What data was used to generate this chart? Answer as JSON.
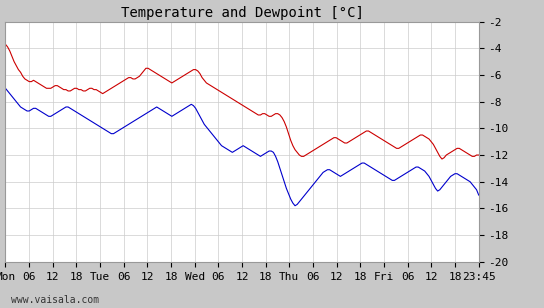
{
  "title": "Temperature and Dewpoint [°C]",
  "ylim": [
    -20,
    -2
  ],
  "yticks": [
    -20,
    -18,
    -16,
    -14,
    -12,
    -10,
    -8,
    -6,
    -4,
    -2
  ],
  "plot_bg_color": "#ffffff",
  "fig_bg_color": "#c8c8c8",
  "grid_color": "#cccccc",
  "temp_color": "#cc0000",
  "dew_color": "#0000cc",
  "watermark": "www.vaisala.com",
  "title_fontsize": 10,
  "tick_fontsize": 8,
  "watermark_fontsize": 7,
  "line_width": 0.8,
  "temp_data": [
    -3.7,
    -3.9,
    -4.2,
    -4.6,
    -5.0,
    -5.3,
    -5.6,
    -5.8,
    -6.1,
    -6.3,
    -6.4,
    -6.5,
    -6.5,
    -6.4,
    -6.5,
    -6.6,
    -6.7,
    -6.8,
    -6.9,
    -7.0,
    -7.0,
    -7.0,
    -6.9,
    -6.8,
    -6.8,
    -6.9,
    -7.0,
    -7.1,
    -7.1,
    -7.2,
    -7.2,
    -7.1,
    -7.0,
    -7.0,
    -7.1,
    -7.1,
    -7.2,
    -7.2,
    -7.1,
    -7.0,
    -7.0,
    -7.1,
    -7.1,
    -7.2,
    -7.3,
    -7.4,
    -7.3,
    -7.2,
    -7.1,
    -7.0,
    -6.9,
    -6.8,
    -6.7,
    -6.6,
    -6.5,
    -6.4,
    -6.3,
    -6.2,
    -6.2,
    -6.3,
    -6.3,
    -6.2,
    -6.1,
    -5.9,
    -5.7,
    -5.5,
    -5.5,
    -5.6,
    -5.7,
    -5.8,
    -5.9,
    -6.0,
    -6.1,
    -6.2,
    -6.3,
    -6.4,
    -6.5,
    -6.6,
    -6.5,
    -6.4,
    -6.3,
    -6.2,
    -6.1,
    -6.0,
    -5.9,
    -5.8,
    -5.7,
    -5.6,
    -5.6,
    -5.7,
    -5.9,
    -6.2,
    -6.4,
    -6.6,
    -6.7,
    -6.8,
    -6.9,
    -7.0,
    -7.1,
    -7.2,
    -7.3,
    -7.4,
    -7.5,
    -7.6,
    -7.7,
    -7.8,
    -7.9,
    -8.0,
    -8.1,
    -8.2,
    -8.3,
    -8.4,
    -8.5,
    -8.6,
    -8.7,
    -8.8,
    -8.9,
    -9.0,
    -9.0,
    -8.9,
    -8.9,
    -9.0,
    -9.1,
    -9.1,
    -9.0,
    -8.9,
    -8.9,
    -9.0,
    -9.2,
    -9.5,
    -9.9,
    -10.4,
    -10.9,
    -11.3,
    -11.6,
    -11.8,
    -12.0,
    -12.1,
    -12.1,
    -12.0,
    -11.9,
    -11.8,
    -11.7,
    -11.6,
    -11.5,
    -11.4,
    -11.3,
    -11.2,
    -11.1,
    -11.0,
    -10.9,
    -10.8,
    -10.7,
    -10.7,
    -10.8,
    -10.9,
    -11.0,
    -11.1,
    -11.1,
    -11.0,
    -10.9,
    -10.8,
    -10.7,
    -10.6,
    -10.5,
    -10.4,
    -10.3,
    -10.2,
    -10.2,
    -10.3,
    -10.4,
    -10.5,
    -10.6,
    -10.7,
    -10.8,
    -10.9,
    -11.0,
    -11.1,
    -11.2,
    -11.3,
    -11.4,
    -11.5,
    -11.5,
    -11.4,
    -11.3,
    -11.2,
    -11.1,
    -11.0,
    -10.9,
    -10.8,
    -10.7,
    -10.6,
    -10.5,
    -10.5,
    -10.6,
    -10.7,
    -10.8,
    -11.0,
    -11.2,
    -11.5,
    -11.8,
    -12.1,
    -12.3,
    -12.2,
    -12.0,
    -11.9,
    -11.8,
    -11.7,
    -11.6,
    -11.5,
    -11.5,
    -11.6,
    -11.7,
    -11.8,
    -11.9,
    -12.0,
    -12.1,
    -12.1,
    -12.0,
    -12.0
  ],
  "dew_data": [
    -7.0,
    -7.2,
    -7.4,
    -7.6,
    -7.8,
    -8.0,
    -8.2,
    -8.4,
    -8.5,
    -8.6,
    -8.7,
    -8.7,
    -8.6,
    -8.5,
    -8.5,
    -8.6,
    -8.7,
    -8.8,
    -8.9,
    -9.0,
    -9.1,
    -9.1,
    -9.0,
    -8.9,
    -8.8,
    -8.7,
    -8.6,
    -8.5,
    -8.4,
    -8.4,
    -8.5,
    -8.6,
    -8.7,
    -8.8,
    -8.9,
    -9.0,
    -9.1,
    -9.2,
    -9.3,
    -9.4,
    -9.5,
    -9.6,
    -9.7,
    -9.8,
    -9.9,
    -10.0,
    -10.1,
    -10.2,
    -10.3,
    -10.4,
    -10.4,
    -10.3,
    -10.2,
    -10.1,
    -10.0,
    -9.9,
    -9.8,
    -9.7,
    -9.6,
    -9.5,
    -9.4,
    -9.3,
    -9.2,
    -9.1,
    -9.0,
    -8.9,
    -8.8,
    -8.7,
    -8.6,
    -8.5,
    -8.4,
    -8.5,
    -8.6,
    -8.7,
    -8.8,
    -8.9,
    -9.0,
    -9.1,
    -9.0,
    -8.9,
    -8.8,
    -8.7,
    -8.6,
    -8.5,
    -8.4,
    -8.3,
    -8.2,
    -8.3,
    -8.5,
    -8.8,
    -9.1,
    -9.4,
    -9.7,
    -9.9,
    -10.1,
    -10.3,
    -10.5,
    -10.7,
    -10.9,
    -11.1,
    -11.3,
    -11.4,
    -11.5,
    -11.6,
    -11.7,
    -11.8,
    -11.7,
    -11.6,
    -11.5,
    -11.4,
    -11.3,
    -11.4,
    -11.5,
    -11.6,
    -11.7,
    -11.8,
    -11.9,
    -12.0,
    -12.1,
    -12.0,
    -11.9,
    -11.8,
    -11.7,
    -11.7,
    -11.8,
    -12.1,
    -12.5,
    -13.0,
    -13.5,
    -14.0,
    -14.5,
    -14.9,
    -15.3,
    -15.6,
    -15.8,
    -15.7,
    -15.5,
    -15.3,
    -15.1,
    -14.9,
    -14.7,
    -14.5,
    -14.3,
    -14.1,
    -13.9,
    -13.7,
    -13.5,
    -13.3,
    -13.2,
    -13.1,
    -13.1,
    -13.2,
    -13.3,
    -13.4,
    -13.5,
    -13.6,
    -13.5,
    -13.4,
    -13.3,
    -13.2,
    -13.1,
    -13.0,
    -12.9,
    -12.8,
    -12.7,
    -12.6,
    -12.6,
    -12.7,
    -12.8,
    -12.9,
    -13.0,
    -13.1,
    -13.2,
    -13.3,
    -13.4,
    -13.5,
    -13.6,
    -13.7,
    -13.8,
    -13.9,
    -13.9,
    -13.8,
    -13.7,
    -13.6,
    -13.5,
    -13.4,
    -13.3,
    -13.2,
    -13.1,
    -13.0,
    -12.9,
    -12.9,
    -13.0,
    -13.1,
    -13.2,
    -13.4,
    -13.6,
    -13.9,
    -14.2,
    -14.5,
    -14.7,
    -14.6,
    -14.4,
    -14.2,
    -14.0,
    -13.8,
    -13.6,
    -13.5,
    -13.4,
    -13.4,
    -13.5,
    -13.6,
    -13.7,
    -13.8,
    -13.9,
    -14.0,
    -14.2,
    -14.4,
    -14.6,
    -15.0
  ],
  "n_points": 220,
  "x_ticks_positions": [
    0,
    6,
    12,
    18,
    24,
    30,
    36,
    42,
    48,
    54,
    60,
    66,
    72,
    78,
    84,
    90,
    96,
    102,
    108,
    114,
    120
  ],
  "x_ticks_labels": [
    "Mon",
    "06",
    "12",
    "18",
    "Tue",
    "06",
    "12",
    "18",
    "Wed",
    "06",
    "12",
    "18",
    "Thu",
    "06",
    "12",
    "18",
    "Fri",
    "06",
    "12",
    "18",
    "23:45"
  ],
  "xlim": [
    0,
    120
  ]
}
